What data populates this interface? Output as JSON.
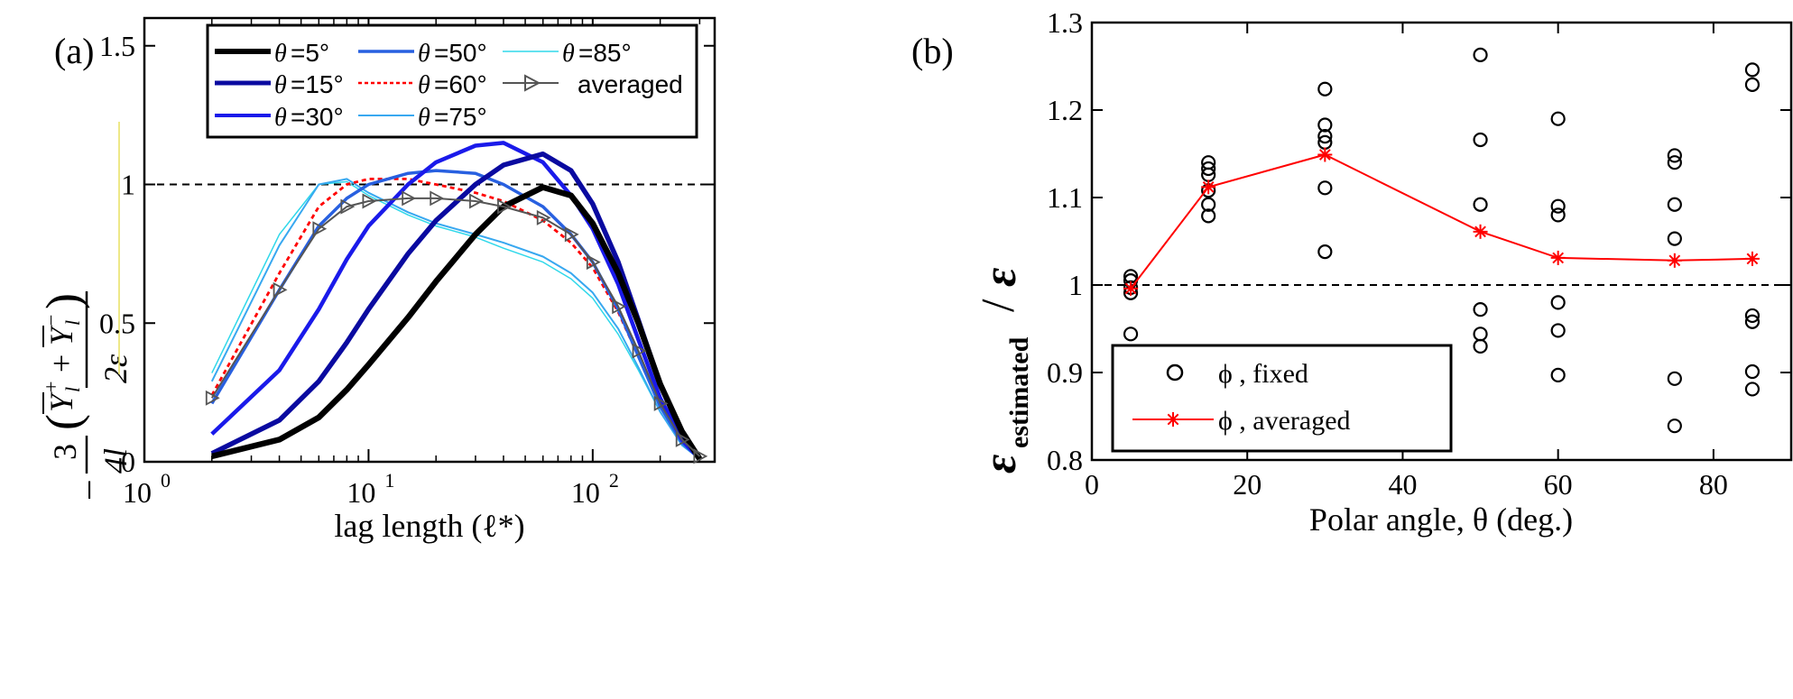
{
  "chart_data": [
    {
      "type": "line",
      "panel_label": "(a)",
      "xlabel": "lag length (ℓ*)",
      "x_scale": "log",
      "xlim": [
        1,
        350
      ],
      "x_ticks": [
        {
          "base": "10",
          "exp": "0",
          "v": 1
        },
        {
          "base": "10",
          "exp": "1",
          "v": 10
        },
        {
          "base": "10",
          "exp": "2",
          "v": 100
        }
      ],
      "ylim": [
        0,
        1.6
      ],
      "y_ticks": [
        "0",
        "0.5",
        "1",
        "1.5"
      ],
      "ylabel_parts": {
        "minus": "−",
        "three": "3",
        "four_l": "4l",
        "lparen": "(",
        "rparen": ")",
        "y": "Y",
        "l": "l",
        "plus_sup": "+",
        "minus_sup": "−",
        "plus": "+",
        "two_eps": "2ε"
      },
      "reference_line": 1,
      "legend": {
        "theta_sym": "θ",
        "avg_label": "averaged",
        "entries": [
          "=5°",
          "=15°",
          "=30°",
          "=50°",
          "=60°",
          "=75°",
          "=85°"
        ]
      },
      "x": [
        2,
        4,
        6,
        8,
        10,
        15,
        20,
        30,
        40,
        60,
        80,
        100,
        130,
        160,
        200,
        250,
        300
      ],
      "series": [
        {
          "name": "θ =5°",
          "color": "#000000",
          "values": [
            0.02,
            0.08,
            0.16,
            0.26,
            0.35,
            0.52,
            0.65,
            0.82,
            0.92,
            0.99,
            0.96,
            0.86,
            0.68,
            0.5,
            0.28,
            0.11,
            0.01
          ]
        },
        {
          "name": "θ =15°",
          "color": "#0a0aa0",
          "values": [
            0.03,
            0.15,
            0.29,
            0.43,
            0.55,
            0.75,
            0.87,
            1.0,
            1.07,
            1.11,
            1.05,
            0.93,
            0.72,
            0.51,
            0.28,
            0.1,
            0.01
          ]
        },
        {
          "name": "θ =30°",
          "color": "#1a1aea",
          "values": [
            0.1,
            0.33,
            0.55,
            0.73,
            0.85,
            1.0,
            1.08,
            1.14,
            1.15,
            1.08,
            0.96,
            0.84,
            0.64,
            0.44,
            0.23,
            0.08,
            0.01
          ]
        },
        {
          "name": "θ =50°",
          "color": "#2860e0",
          "values": [
            0.21,
            0.62,
            0.85,
            0.95,
            1.0,
            1.04,
            1.05,
            1.04,
            1.0,
            0.92,
            0.82,
            0.72,
            0.55,
            0.38,
            0.2,
            0.07,
            0.01
          ]
        },
        {
          "name": "θ =60°",
          "color": "#ff0000",
          "values": [
            0.24,
            0.68,
            0.92,
            1.0,
            1.02,
            1.02,
            1.0,
            0.97,
            0.94,
            0.87,
            0.79,
            0.7,
            0.54,
            0.38,
            0.2,
            0.07,
            0.01
          ]
        },
        {
          "name": "θ =75°",
          "color": "#38a8f0",
          "values": [
            0.29,
            0.78,
            1.0,
            1.02,
            0.97,
            0.9,
            0.86,
            0.82,
            0.79,
            0.74,
            0.68,
            0.61,
            0.48,
            0.34,
            0.18,
            0.06,
            0.01
          ]
        },
        {
          "name": "θ =85°",
          "color": "#30d8ea",
          "values": [
            0.32,
            0.82,
            1.0,
            1.01,
            0.96,
            0.89,
            0.85,
            0.81,
            0.77,
            0.72,
            0.66,
            0.59,
            0.46,
            0.33,
            0.18,
            0.06,
            0.01
          ]
        },
        {
          "name": "averaged",
          "color": "#555555",
          "values": [
            0.23,
            0.62,
            0.84,
            0.92,
            0.94,
            0.95,
            0.95,
            0.94,
            0.92,
            0.88,
            0.82,
            0.72,
            0.56,
            0.4,
            0.21,
            0.08,
            0.02
          ]
        }
      ]
    },
    {
      "type": "scatter",
      "panel_label": "(b)",
      "xlabel": "Polar angle, θ (deg.)",
      "xlim": [
        0,
        90
      ],
      "x_ticks": [
        "0",
        "20",
        "40",
        "60",
        "80"
      ],
      "ylim": [
        0.8,
        1.3
      ],
      "y_ticks": [
        "0.8",
        "0.9",
        "1",
        "1.1",
        "1.2",
        "1.3"
      ],
      "ylabel_parts": {
        "eps": "ε",
        "sub": "estimated",
        "slash": "/",
        "eps2": "ε"
      },
      "reference_line": 1,
      "legend": {
        "fixed_label": "ϕ , fixed",
        "avg_label": "ϕ , averaged"
      },
      "series": [
        {
          "name": "ϕ , fixed",
          "color": "#000000",
          "points": [
            [
              5,
              1.01
            ],
            [
              5,
              1.005
            ],
            [
              5,
              0.997
            ],
            [
              5,
              0.991
            ],
            [
              5,
              0.944
            ],
            [
              15,
              1.14
            ],
            [
              15,
              1.133
            ],
            [
              15,
              1.126
            ],
            [
              15,
              1.108
            ],
            [
              15,
              1.092
            ],
            [
              15,
              1.079
            ],
            [
              30,
              1.224
            ],
            [
              30,
              1.183
            ],
            [
              30,
              1.17
            ],
            [
              30,
              1.163
            ],
            [
              30,
              1.111
            ],
            [
              30,
              1.038
            ],
            [
              50,
              1.263
            ],
            [
              50,
              1.166
            ],
            [
              50,
              1.092
            ],
            [
              50,
              0.972
            ],
            [
              50,
              0.944
            ],
            [
              50,
              0.93
            ],
            [
              60,
              1.19
            ],
            [
              60,
              1.09
            ],
            [
              60,
              1.08
            ],
            [
              60,
              0.98
            ],
            [
              60,
              0.948
            ],
            [
              60,
              0.897
            ],
            [
              75,
              1.148
            ],
            [
              75,
              1.14
            ],
            [
              75,
              1.092
            ],
            [
              75,
              1.053
            ],
            [
              75,
              0.893
            ],
            [
              75,
              0.839
            ],
            [
              85,
              1.246
            ],
            [
              85,
              1.229
            ],
            [
              85,
              0.965
            ],
            [
              85,
              0.958
            ],
            [
              85,
              0.901
            ],
            [
              85,
              0.881
            ]
          ]
        },
        {
          "name": "ϕ , averaged",
          "color": "#ff0000",
          "x": [
            5,
            15,
            30,
            50,
            60,
            75,
            85
          ],
          "values": [
            0.996,
            1.112,
            1.149,
            1.061,
            1.031,
            1.028,
            1.03
          ]
        }
      ]
    }
  ]
}
